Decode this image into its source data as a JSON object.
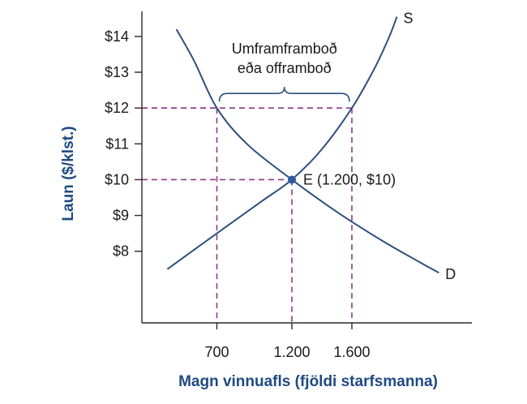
{
  "chart_data": {
    "type": "line",
    "xlabel": "Magn vinnuafls (fjöldi starfsmanna)",
    "ylabel": "Laun ($/klst.)",
    "xlim": [
      200,
      2400
    ],
    "ylim": [
      6.0,
      14.7
    ],
    "x_ticks": [
      {
        "value": 700,
        "label": "700"
      },
      {
        "value": 1200,
        "label": "1.200"
      },
      {
        "value": 1600,
        "label": "1.600"
      }
    ],
    "y_ticks": [
      {
        "value": 8,
        "label": "$8"
      },
      {
        "value": 9,
        "label": "$9"
      },
      {
        "value": 10,
        "label": "$10"
      },
      {
        "value": 11,
        "label": "$11"
      },
      {
        "value": 12,
        "label": "$12"
      },
      {
        "value": 13,
        "label": "$13"
      },
      {
        "value": 14,
        "label": "$14"
      }
    ],
    "grid": false,
    "series": [
      {
        "name": "S",
        "color": "#2e4f7e",
        "points": [
          [
            370,
            7.5
          ],
          [
            700,
            8.5
          ],
          [
            1000,
            9.4
          ],
          [
            1200,
            10
          ],
          [
            1400,
            10.85
          ],
          [
            1600,
            12
          ],
          [
            1750,
            13.1
          ],
          [
            1850,
            14.0
          ],
          [
            1900,
            14.55
          ]
        ]
      },
      {
        "name": "D",
        "color": "#2e4f7e",
        "points": [
          [
            430,
            14.2
          ],
          [
            550,
            13.3
          ],
          [
            700,
            12
          ],
          [
            900,
            11
          ],
          [
            1200,
            10
          ],
          [
            1500,
            9.1
          ],
          [
            1800,
            8.3
          ],
          [
            2050,
            7.7
          ],
          [
            2180,
            7.4
          ]
        ]
      }
    ],
    "equilibrium": {
      "x": 1200,
      "y": 10,
      "label": "E (1.200, $10)",
      "color": "#2e5a9c"
    },
    "guides": [
      {
        "x": 700,
        "y": 12
      },
      {
        "x": 1600,
        "y": 12
      },
      {
        "x": 1200,
        "y": 10
      }
    ],
    "bracket": {
      "x_from": 700,
      "x_to": 1600,
      "y": 12,
      "label_lines": [
        "Umframframboð",
        "eða offramboð"
      ]
    },
    "guide_color": "#8c3a8c"
  }
}
